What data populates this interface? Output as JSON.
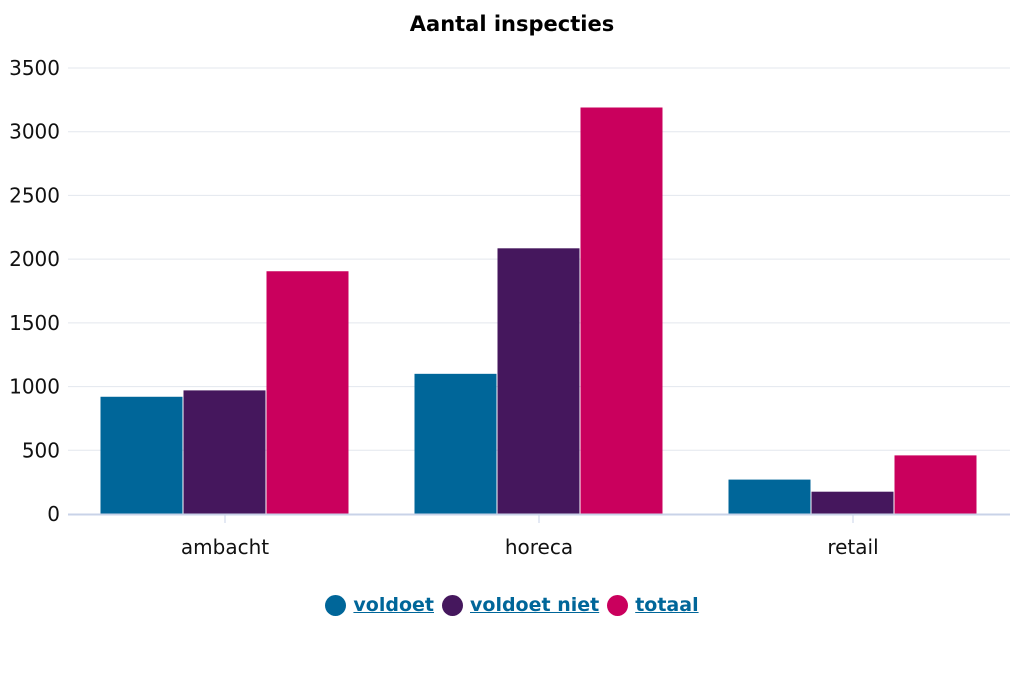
{
  "chart_data": {
    "type": "bar",
    "title": "Aantal inspecties",
    "xlabel": "",
    "ylabel": "",
    "categories": [
      "ambacht",
      "horeca",
      "retail"
    ],
    "ylim": [
      0,
      3500
    ],
    "yticks": [
      0,
      500,
      1000,
      1500,
      2000,
      2500,
      3000,
      3500
    ],
    "grid": true,
    "legend_position": "bottom",
    "series": [
      {
        "name": "voldoet",
        "color": "#006699",
        "values": [
          920,
          1100,
          270
        ]
      },
      {
        "name": "voldoet niet",
        "color": "#45175d",
        "values": [
          970,
          2085,
          175
        ]
      },
      {
        "name": "totaal",
        "color": "#ca005d",
        "values": [
          1905,
          3190,
          460
        ]
      }
    ]
  },
  "colors": {
    "link": "#006699",
    "grid": "#e3e7ee",
    "axis": "#c9d3e8"
  }
}
